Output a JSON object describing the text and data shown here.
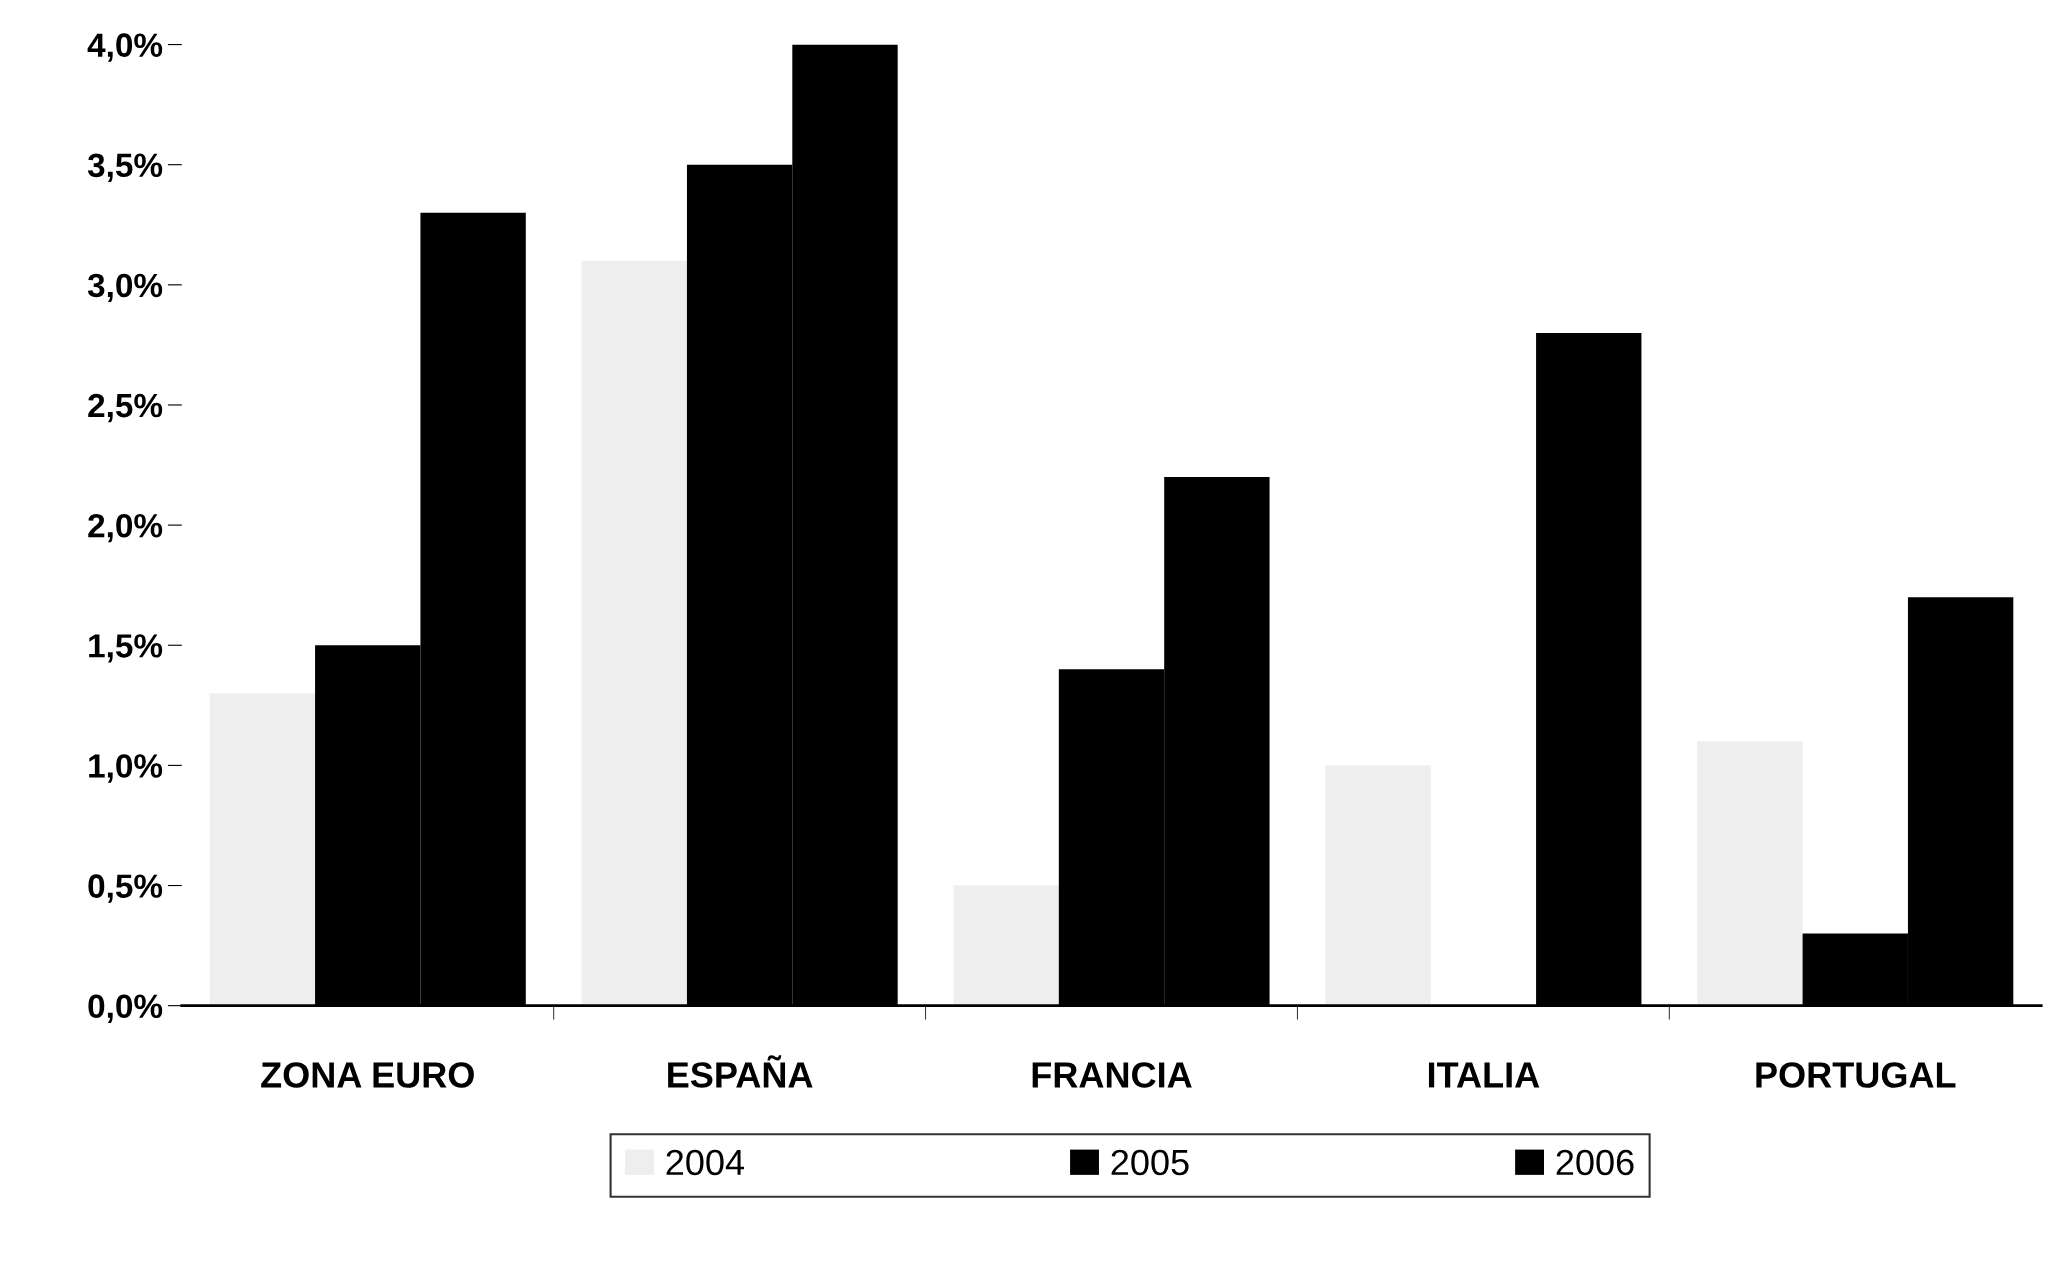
{
  "chart_data": {
    "type": "bar",
    "categories": [
      "ZONA EURO",
      "ESPAÑA",
      "FRANCIA",
      "ITALIA",
      "PORTUGAL"
    ],
    "series": [
      {
        "name": "2004",
        "color": "#eeeeee",
        "values": [
          1.3,
          3.1,
          0.5,
          1.0,
          1.1
        ]
      },
      {
        "name": "2005",
        "color": "#000000",
        "values": [
          1.5,
          3.5,
          1.4,
          0.0,
          0.3
        ]
      },
      {
        "name": "2006",
        "color": "#000000",
        "values": [
          3.3,
          4.0,
          2.2,
          2.8,
          1.7
        ]
      }
    ],
    "ylim": [
      0,
      4.0
    ],
    "yticks": [
      {
        "value": 0,
        "label": "0,0%"
      },
      {
        "value": 0.5,
        "label": "0,5%"
      },
      {
        "value": 1.0,
        "label": "1,0%"
      },
      {
        "value": 1.5,
        "label": "1,5%"
      },
      {
        "value": 2.0,
        "label": "2,0%"
      },
      {
        "value": 2.5,
        "label": "2,5%"
      },
      {
        "value": 3.0,
        "label": "3,0%"
      },
      {
        "value": 3.5,
        "label": "3,5%"
      },
      {
        "value": 4.0,
        "label": "4,0%"
      }
    ],
    "grid": false,
    "legend": "bottom"
  }
}
